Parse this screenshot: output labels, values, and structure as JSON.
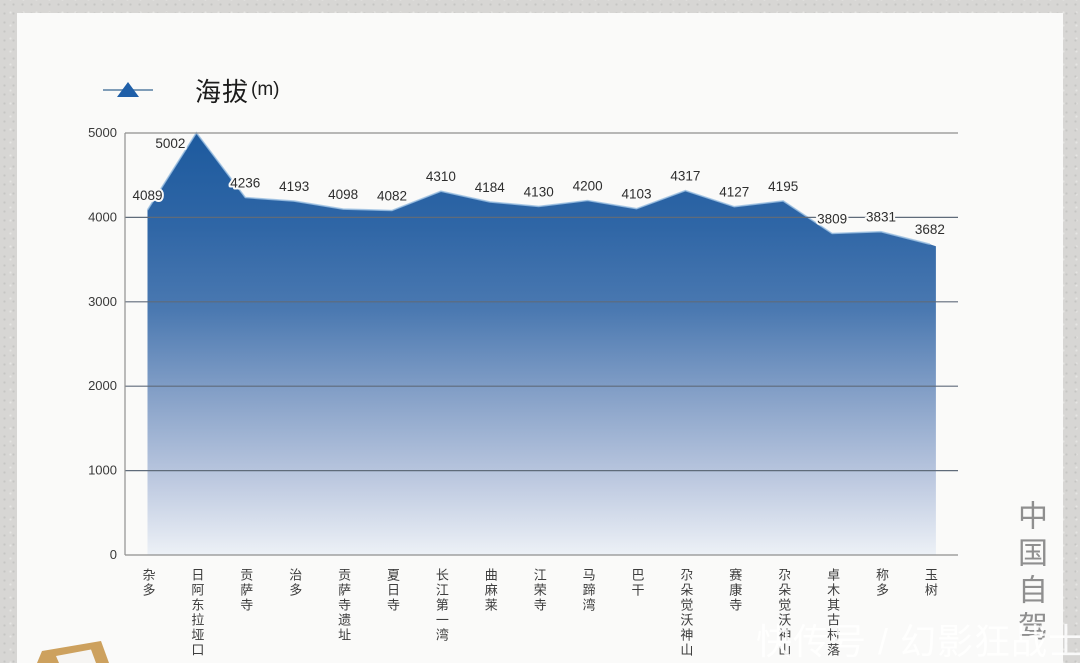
{
  "legend": {
    "label": "海拔",
    "unit": "(m)"
  },
  "side_text": "中国自驾地",
  "watermark": "快传号 / 幻影狂战士",
  "chart_data": {
    "type": "area",
    "title": "海拔(m)",
    "series_name": "海拔(m)",
    "xlabel": "",
    "ylabel": "海拔(m)",
    "ylim": [
      0,
      5000
    ],
    "yticks": [
      0,
      1000,
      2000,
      3000,
      4000,
      5000
    ],
    "grid": true,
    "legend_position": "top-left",
    "categories": [
      "杂多",
      "日阿东拉垭口",
      "贡萨寺",
      "治多",
      "贡萨寺遗址",
      "夏日寺",
      "长江第一湾",
      "曲麻莱",
      "江荣寺",
      "马蹄湾",
      "巴干",
      "尕朵觉沃神山西",
      "赛康寺",
      "尕朵觉沃神山北",
      "卓木其古村落",
      "称多",
      "玉树"
    ],
    "values": [
      4089,
      5002,
      4236,
      4193,
      4098,
      4082,
      4310,
      4184,
      4130,
      4200,
      4103,
      4317,
      4127,
      4195,
      3809,
      3831,
      3682
    ],
    "colors": {
      "area_top": "#1d5a9e",
      "area_mid": "#7f9cc4",
      "area_bottom": "#eef2f7",
      "edge_line": "#9cc0e2",
      "marker": "#1f5fa8",
      "gridline": "#5f6b7a",
      "frame": "#8f8f8f",
      "label_text": "#2e2e2e"
    }
  }
}
